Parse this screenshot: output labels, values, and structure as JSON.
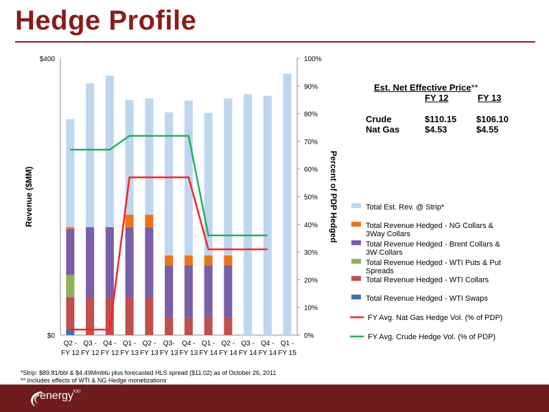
{
  "title": "Hedge Profile",
  "price_table": {
    "heading": "Est. Net Effective Price",
    "heading_mark": "**",
    "col1": "FY 12",
    "col2": "FY 13",
    "rows": [
      {
        "label": "Crude",
        "v1": "$110.15",
        "v2": "$106.10"
      },
      {
        "label": "Nat Gas",
        "v1": "$4.53",
        "v2": "$4.55"
      }
    ]
  },
  "footnotes": [
    "*Strip:  $89.81/bbl & $4.49Mmbtu plus forecasted HLS spread ($11.02) as of October 26, 2011",
    "** Includes effects of WTI & NG Hedge monetizations"
  ],
  "logo": {
    "text": "energy",
    "sup": "XXI"
  },
  "colors": {
    "brand": "#8a1c1c",
    "footer": "#6e1c1c"
  },
  "chart_data": {
    "type": "bar",
    "stacked": true,
    "categories": [
      [
        "Q2 -",
        "FY 12"
      ],
      [
        "Q3 -",
        "FY 12"
      ],
      [
        "Q4 -",
        "FY 12"
      ],
      [
        "Q1 -",
        "FY 13"
      ],
      [
        "Q2 -",
        "FY 13"
      ],
      [
        "Q3-",
        "FY 13"
      ],
      [
        "Q4 -",
        "FY 13"
      ],
      [
        "Q1 -",
        "FY 14"
      ],
      [
        "Q2 -",
        "FY 14"
      ],
      [
        "Q3 -",
        "FY 14"
      ],
      [
        "Q4 -",
        "FY 14"
      ],
      [
        "Q1 -",
        "FY 15"
      ]
    ],
    "ylabel": "Revenue ($MM)",
    "y2label": "Percent of PDP Hedged",
    "ylim": [
      0,
      400
    ],
    "yticks": [
      "$0",
      "$400"
    ],
    "y2lim": [
      0,
      100
    ],
    "y2ticks": [
      "0%",
      "10%",
      "20%",
      "30%",
      "40%",
      "50%",
      "60%",
      "70%",
      "80%",
      "90%",
      "100%"
    ],
    "total": {
      "name": "Total Est. Rev. @ Strip*",
      "color": "#bdd7ee",
      "values": [
        312,
        364,
        375,
        340,
        342,
        322,
        339,
        321,
        342,
        348,
        346,
        378
      ]
    },
    "stack_series": [
      {
        "name": "Total Revenue Hedged - WTI Swaps",
        "color": "#3d6fb4",
        "values": [
          7,
          0,
          0,
          0,
          0,
          0,
          0,
          0,
          0,
          0,
          0,
          0
        ]
      },
      {
        "name": "Total Revenue Hedged - WTI Collars",
        "color": "#c0504d",
        "values": [
          48,
          54,
          54,
          54,
          54,
          25,
          25,
          25,
          25,
          0,
          0,
          0
        ]
      },
      {
        "name": "Total Revenue Hedged - WTI Puts & Put Spreads",
        "color": "#8db255",
        "values": [
          32,
          0,
          0,
          0,
          0,
          0,
          0,
          0,
          0,
          0,
          0,
          0
        ]
      },
      {
        "name": "Total Revenue Hedged - Brent Collars & 3W Collars",
        "color": "#7a5ea8",
        "values": [
          66,
          102,
          102,
          102,
          102,
          76,
          76,
          76,
          76,
          0,
          0,
          0
        ]
      },
      {
        "name": "Total Revenue Hedged - NG Collars & 3Way Collars",
        "color": "#ee7218",
        "values": [
          3,
          0,
          0,
          18,
          18,
          14,
          14,
          14,
          14,
          0,
          0,
          0
        ]
      }
    ],
    "lines": [
      {
        "name": "FY Avg. Nat Gas Hedge Vol. (% of PDP)",
        "color": "#ff2020",
        "values": [
          2,
          2,
          2,
          57,
          57,
          57,
          57,
          31,
          31,
          31,
          31,
          null
        ]
      },
      {
        "name": "FY Avg. Crude Hedge Vol. (% of PDP)",
        "color": "#21b05a",
        "values": [
          67,
          67,
          67,
          72,
          72,
          72,
          72,
          36,
          36,
          36,
          36,
          null
        ]
      }
    ],
    "legend_order": [
      "Total Est. Rev. @ Strip*",
      "Total Revenue Hedged - NG Collars & 3Way Collars",
      "Total Revenue Hedged - Brent Collars & 3W Collars",
      "Total Revenue Hedged - WTI Puts & Put Spreads",
      "Total Revenue Hedged - WTI Collars",
      "Total Revenue Hedged - WTI Swaps",
      "FY Avg. Nat Gas Hedge Vol. (% of PDP)",
      "FY Avg. Crude Hedge Vol. (% of PDP)"
    ],
    "legend_position": "right",
    "grid": false
  }
}
